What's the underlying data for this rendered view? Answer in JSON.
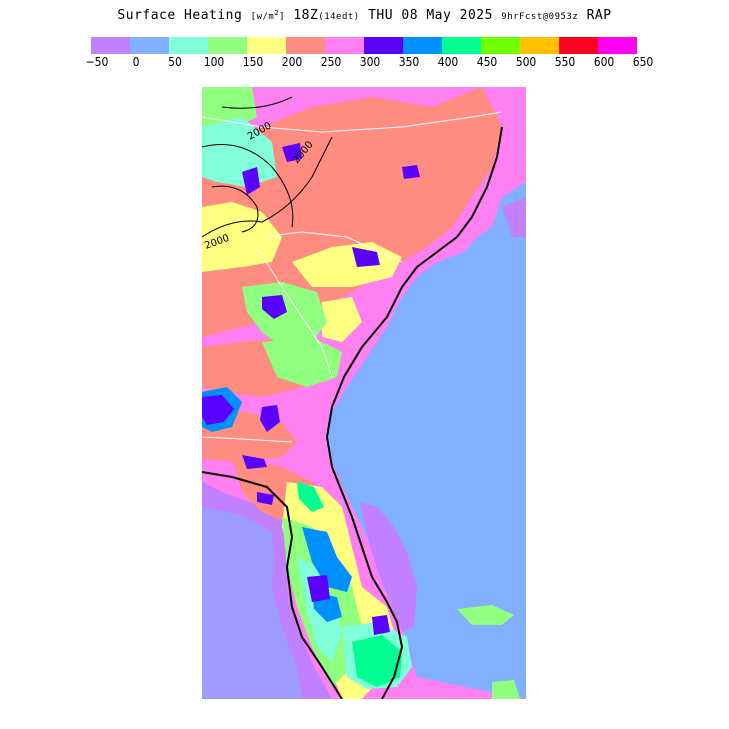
{
  "header": {
    "title_main": "Surface Heating",
    "units": "[w/m",
    "units_sup": "2",
    "units_close": "]",
    "time": "18Z",
    "local_time": "(14edt)",
    "date": "THU 08 May 2025",
    "forecast": "9hrFcst@0953z",
    "model": "RAP"
  },
  "legend": {
    "colors": [
      "#c080ff",
      "#80b0ff",
      "#80ffd8",
      "#90ff80",
      "#ffff80",
      "#ff8c80",
      "#ff80f0",
      "#5a00ff",
      "#0090ff",
      "#00ff90",
      "#70ff00",
      "#ffc000",
      "#ff0020",
      "#ff00f0"
    ],
    "ticks": [
      "−50",
      "0",
      "50",
      "100",
      "150",
      "200",
      "250",
      "300",
      "350",
      "400",
      "450",
      "500",
      "550",
      "600",
      "650"
    ]
  },
  "map": {
    "contour_labels": [
      "2000",
      "2000",
      "2000"
    ],
    "colors": {
      "ocean": "#80b0ff",
      "gulf_low": "#c080ff",
      "c_neg": "#c080ff",
      "c_0": "#80b0ff",
      "c_50": "#80ffd8",
      "c_100": "#90ff80",
      "c_150": "#ffff80",
      "c_200": "#ff8c80",
      "c_250": "#ff80f0",
      "c_300": "#5a00ff",
      "c_350": "#0090ff",
      "c_400": "#00ff90"
    }
  }
}
